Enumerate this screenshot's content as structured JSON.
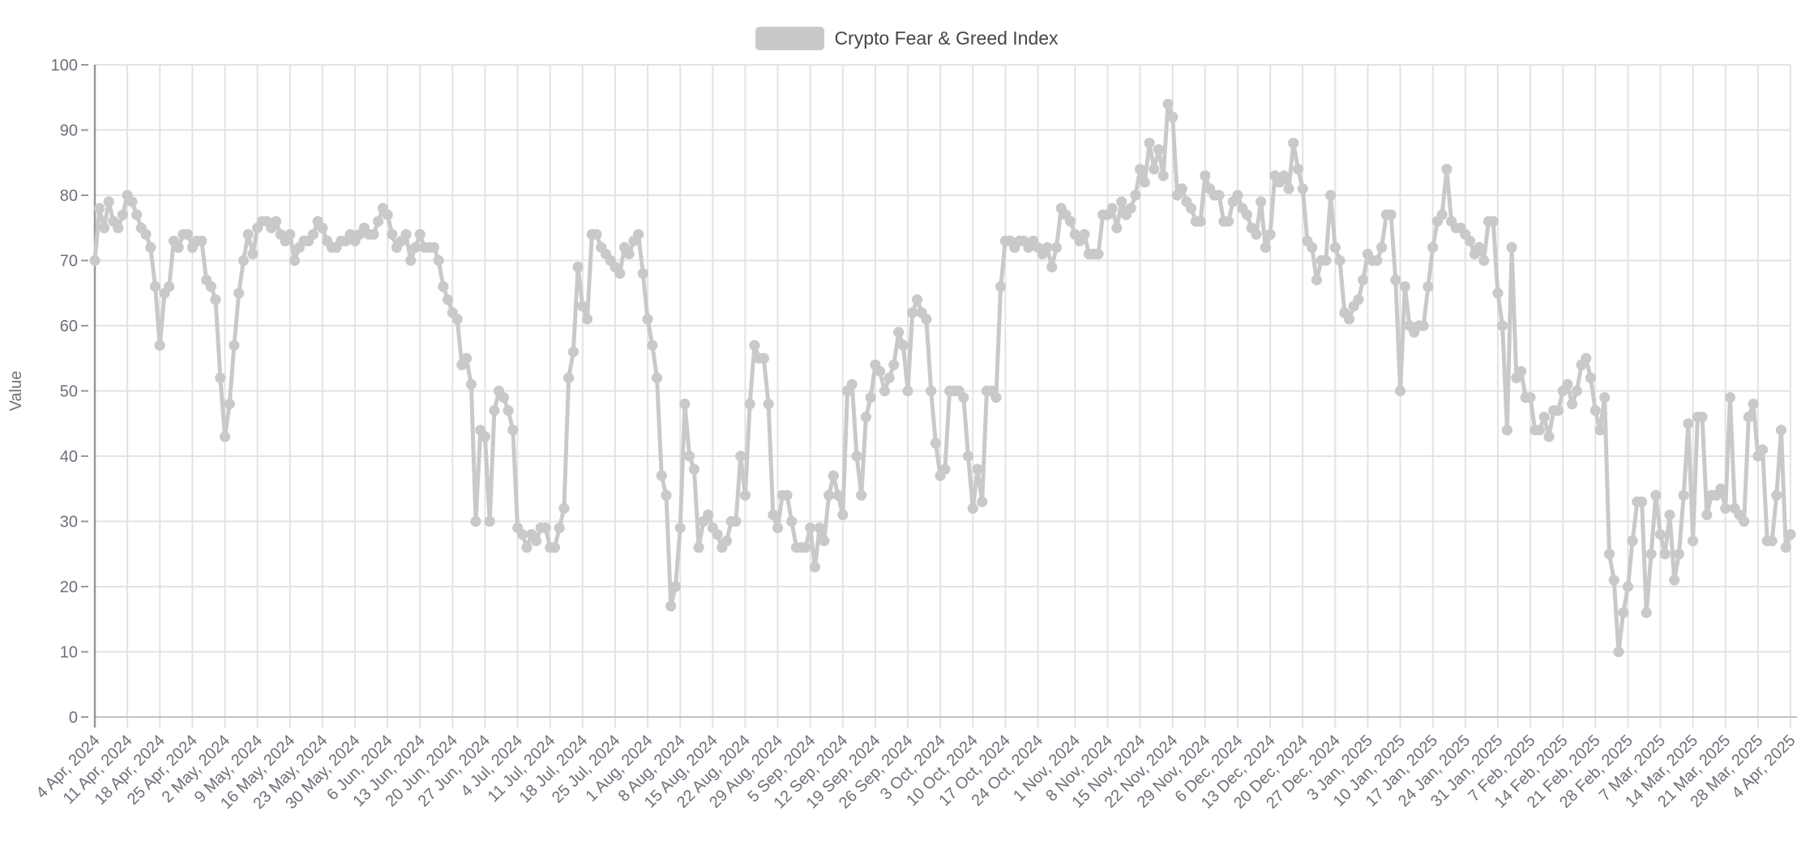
{
  "legend": {
    "label": "Crypto Fear & Greed Index"
  },
  "colors": {
    "series": "#c9c9c9",
    "grid": "#e3e3e3",
    "y_axis_line": "#999999",
    "x_axis_line": "#c2c2c2",
    "tick_label": "#6e7079",
    "legend_text": "#464646",
    "background": "#ffffff"
  },
  "chart_data": {
    "type": "line",
    "title": "Crypto Fear & Greed Index",
    "xlabel": "",
    "ylabel": "Value",
    "ylim": [
      0,
      100
    ],
    "y_ticks": [
      0,
      10,
      20,
      30,
      40,
      50,
      60,
      70,
      80,
      90,
      100
    ],
    "grid": true,
    "legend_position": "top",
    "points_per_day": 1,
    "x_start": "4 Apr, 2024",
    "x_end": "4 Apr, 2025",
    "x_total_days": 365,
    "x_tick_labels": [
      "4 Apr, 2024",
      "11 Apr, 2024",
      "18 Apr, 2024",
      "25 Apr, 2024",
      "2 May, 2024",
      "9 May, 2024",
      "16 May, 2024",
      "23 May, 2024",
      "30 May, 2024",
      "6 Jun, 2024",
      "13 Jun, 2024",
      "20 Jun, 2024",
      "27 Jun, 2024",
      "4 Jul, 2024",
      "11 Jul, 2024",
      "18 Jul, 2024",
      "25 Jul, 2024",
      "1 Aug, 2024",
      "8 Aug, 2024",
      "15 Aug, 2024",
      "22 Aug, 2024",
      "29 Aug, 2024",
      "5 Sep, 2024",
      "12 Sep, 2024",
      "19 Sep, 2024",
      "26 Sep, 2024",
      "3 Oct, 2024",
      "10 Oct, 2024",
      "17 Oct, 2024",
      "24 Oct, 2024",
      "1 Nov, 2024",
      "8 Nov, 2024",
      "15 Nov, 2024",
      "22 Nov, 2024",
      "29 Nov, 2024",
      "6 Dec, 2024",
      "13 Dec, 2024",
      "20 Dec, 2024",
      "27 Dec, 2024",
      "3 Jan, 2025",
      "10 Jan, 2025",
      "17 Jan, 2025",
      "24 Jan, 2025",
      "31 Jan, 2025",
      "7 Feb, 2025",
      "14 Feb, 2025",
      "21 Feb, 2025",
      "28 Feb, 2025",
      "7 Mar, 2025",
      "14 Mar, 2025",
      "21 Mar, 2025",
      "28 Mar, 2025",
      "4 Apr, 2025"
    ],
    "x_tick_day_index": [
      0,
      7,
      14,
      21,
      28,
      35,
      42,
      49,
      56,
      63,
      70,
      77,
      84,
      91,
      98,
      105,
      112,
      119,
      126,
      133,
      140,
      147,
      154,
      161,
      168,
      175,
      182,
      189,
      196,
      203,
      211,
      218,
      225,
      232,
      239,
      246,
      253,
      260,
      267,
      274,
      281,
      288,
      295,
      302,
      309,
      316,
      323,
      330,
      337,
      344,
      351,
      358,
      365
    ],
    "series": [
      {
        "name": "Crypto Fear & Greed Index",
        "values": [
          70,
          78,
          75,
          79,
          76,
          75,
          77,
          80,
          79,
          77,
          75,
          74,
          72,
          66,
          57,
          65,
          66,
          73,
          72,
          74,
          74,
          72,
          73,
          73,
          67,
          66,
          64,
          52,
          43,
          48,
          57,
          65,
          70,
          74,
          71,
          75,
          76,
          76,
          75,
          76,
          74,
          73,
          74,
          70,
          72,
          73,
          73,
          74,
          76,
          75,
          73,
          72,
          72,
          73,
          73,
          74,
          73,
          74,
          75,
          74,
          74,
          76,
          78,
          77,
          74,
          72,
          73,
          74,
          70,
          72,
          74,
          72,
          72,
          72,
          70,
          66,
          64,
          62,
          61,
          54,
          55,
          51,
          30,
          44,
          43,
          30,
          47,
          50,
          49,
          47,
          44,
          29,
          28,
          26,
          28,
          27,
          29,
          29,
          26,
          26,
          29,
          32,
          52,
          56,
          69,
          63,
          61,
          74,
          74,
          72,
          71,
          70,
          69,
          68,
          72,
          71,
          73,
          74,
          68,
          61,
          57,
          52,
          37,
          34,
          17,
          20,
          29,
          48,
          40,
          38,
          26,
          30,
          31,
          29,
          28,
          26,
          27,
          30,
          30,
          40,
          34,
          48,
          57,
          55,
          55,
          48,
          31,
          29,
          34,
          34,
          30,
          26,
          26,
          26,
          29,
          23,
          29,
          27,
          34,
          37,
          34,
          31,
          50,
          51,
          40,
          34,
          46,
          49,
          54,
          53,
          50,
          52,
          54,
          59,
          57,
          50,
          62,
          64,
          62,
          61,
          50,
          42,
          37,
          38,
          50,
          50,
          50,
          49,
          40,
          32,
          38,
          33,
          50,
          50,
          49,
          66,
          73,
          73,
          72,
          73,
          73,
          72,
          73,
          72,
          71,
          72,
          69,
          72,
          78,
          77,
          76,
          74,
          73,
          74,
          71,
          71,
          71,
          77,
          77,
          78,
          75,
          79,
          77,
          78,
          80,
          84,
          82,
          88,
          84,
          87,
          83,
          94,
          92,
          80,
          81,
          79,
          78,
          76,
          76,
          83,
          81,
          80,
          80,
          76,
          76,
          79,
          80,
          78,
          77,
          75,
          74,
          79,
          72,
          74,
          83,
          82,
          83,
          81,
          88,
          84,
          81,
          73,
          72,
          67,
          70,
          70,
          80,
          72,
          70,
          62,
          61,
          63,
          64,
          67,
          71,
          70,
          70,
          72,
          77,
          77,
          67,
          50,
          66,
          60,
          59,
          60,
          60,
          66,
          72,
          76,
          77,
          84,
          76,
          75,
          75,
          74,
          73,
          71,
          72,
          70,
          76,
          76,
          65,
          60,
          44,
          72,
          52,
          53,
          49,
          49,
          44,
          44,
          46,
          43,
          47,
          47,
          50,
          51,
          48,
          50,
          54,
          55,
          52,
          47,
          44,
          49,
          25,
          21,
          10,
          16,
          20,
          27,
          33,
          33,
          16,
          25,
          34,
          28,
          25,
          31,
          21,
          25,
          34,
          45,
          27,
          46,
          46,
          31,
          34,
          34,
          35,
          32,
          49,
          32,
          31,
          30,
          46,
          48,
          40,
          41,
          27,
          27,
          34,
          44,
          26,
          28
        ]
      }
    ]
  }
}
